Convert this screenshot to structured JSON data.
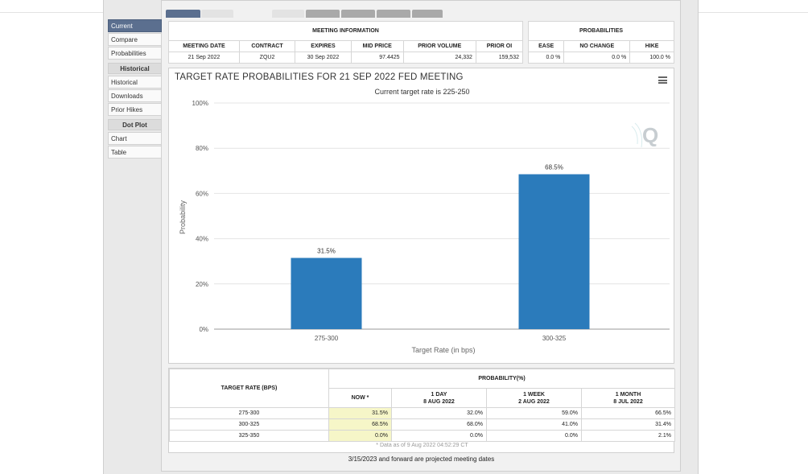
{
  "sidebar": {
    "items_top": [
      {
        "label": "Current",
        "active": true
      },
      {
        "label": "Compare",
        "active": false
      },
      {
        "label": "Probabilities",
        "active": false
      }
    ],
    "historical_header": "Historical",
    "historical_items": [
      "Historical",
      "Downloads",
      "Prior Hikes"
    ],
    "dotplot_header": "Dot Plot",
    "dotplot_items": [
      "Chart",
      "Table"
    ]
  },
  "meeting_info": {
    "header": "MEETING INFORMATION",
    "columns": [
      "MEETING DATE",
      "CONTRACT",
      "EXPIRES",
      "MID PRICE",
      "PRIOR VOLUME",
      "PRIOR OI"
    ],
    "row": [
      "21 Sep 2022",
      "ZQU2",
      "30 Sep 2022",
      "97.4425",
      "24,332",
      "159,532"
    ]
  },
  "probabilities": {
    "header": "PROBABILITIES",
    "columns": [
      "EASE",
      "NO CHANGE",
      "HIKE"
    ],
    "row": [
      "0.0 %",
      "0.0 %",
      "100.0 %"
    ]
  },
  "chart": {
    "title": "TARGET RATE PROBABILITIES FOR 21 SEP 2022 FED MEETING",
    "subtitle": "Current target rate is 225-250",
    "logo_letter": "Q"
  },
  "chart_data": {
    "type": "bar",
    "title": "TARGET RATE PROBABILITIES FOR 21 SEP 2022 FED MEETING",
    "subtitle": "Current target rate is 225-250",
    "categories": [
      "275-300",
      "300-325"
    ],
    "values": [
      31.5,
      68.5
    ],
    "value_labels": [
      "31.5%",
      "68.5%"
    ],
    "xlabel": "Target Rate (in bps)",
    "ylabel": "Probability",
    "ylim": [
      0,
      100
    ],
    "yticks": [
      "0%",
      "20%",
      "40%",
      "60%",
      "80%",
      "100%"
    ],
    "grid": true,
    "color": "#2b7bbb"
  },
  "prob_table": {
    "target_header": "TARGET RATE (BPS)",
    "prob_header": "PROBABILITY(%)",
    "col_now": "NOW *",
    "cols": [
      {
        "line1": "1 DAY",
        "line2": "8 AUG 2022"
      },
      {
        "line1": "1 WEEK",
        "line2": "2 AUG 2022"
      },
      {
        "line1": "1 MONTH",
        "line2": "8 JUL 2022"
      }
    ],
    "rows": [
      {
        "rate": "275-300",
        "now": "31.5%",
        "d1": "32.0%",
        "w1": "59.0%",
        "m1": "66.5%"
      },
      {
        "rate": "300-325",
        "now": "68.5%",
        "d1": "68.0%",
        "w1": "41.0%",
        "m1": "31.4%"
      },
      {
        "rate": "325-350",
        "now": "0.0%",
        "d1": "0.0%",
        "w1": "0.0%",
        "m1": "2.1%"
      }
    ],
    "footnote": "* Data as of 9 Aug 2022 04:52:29 CT"
  },
  "projected_note": "3/15/2023 and forward are projected meeting dates"
}
